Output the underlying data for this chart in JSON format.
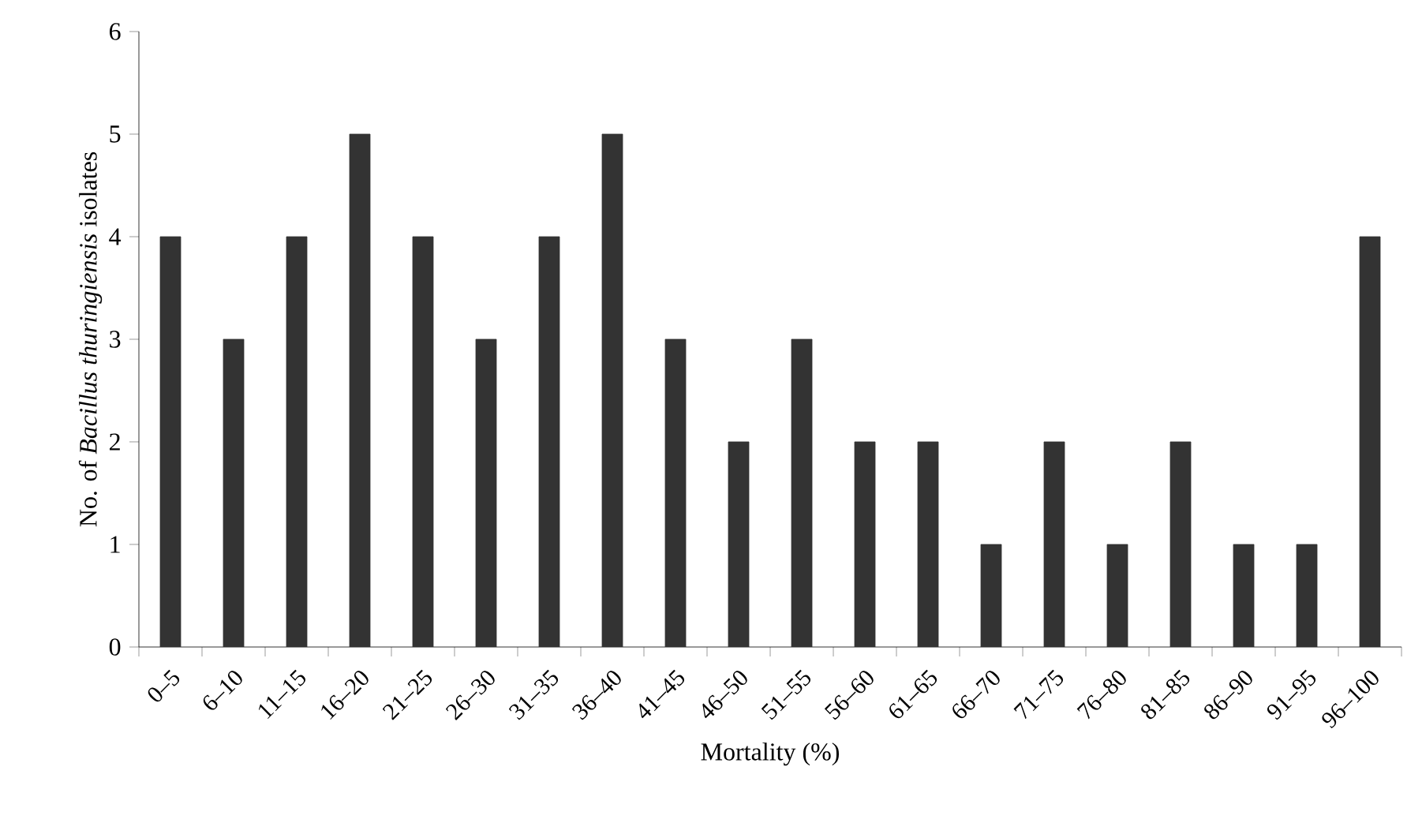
{
  "chart_data": {
    "type": "bar",
    "xlabel": "Mortality (%)",
    "ylabel": "No. of *Bacillus thuringiensis* isolates",
    "categories": [
      "0–5",
      "6–10",
      "11–15",
      "16–20",
      "21–25",
      "26–30",
      "31–35",
      "36–40",
      "41–45",
      "46–50",
      "51–55",
      "56–60",
      "61–65",
      "66–70",
      "71–75",
      "76–80",
      "81–85",
      "86–90",
      "91–95",
      "96–100"
    ],
    "values": [
      4,
      3,
      4,
      5,
      4,
      3,
      4,
      5,
      3,
      2,
      3,
      2,
      2,
      1,
      2,
      1,
      2,
      1,
      1,
      4
    ],
    "color": "#333333",
    "ylim": [
      0,
      6
    ],
    "yticks": [
      0,
      1,
      2,
      3,
      4,
      5,
      6
    ]
  }
}
